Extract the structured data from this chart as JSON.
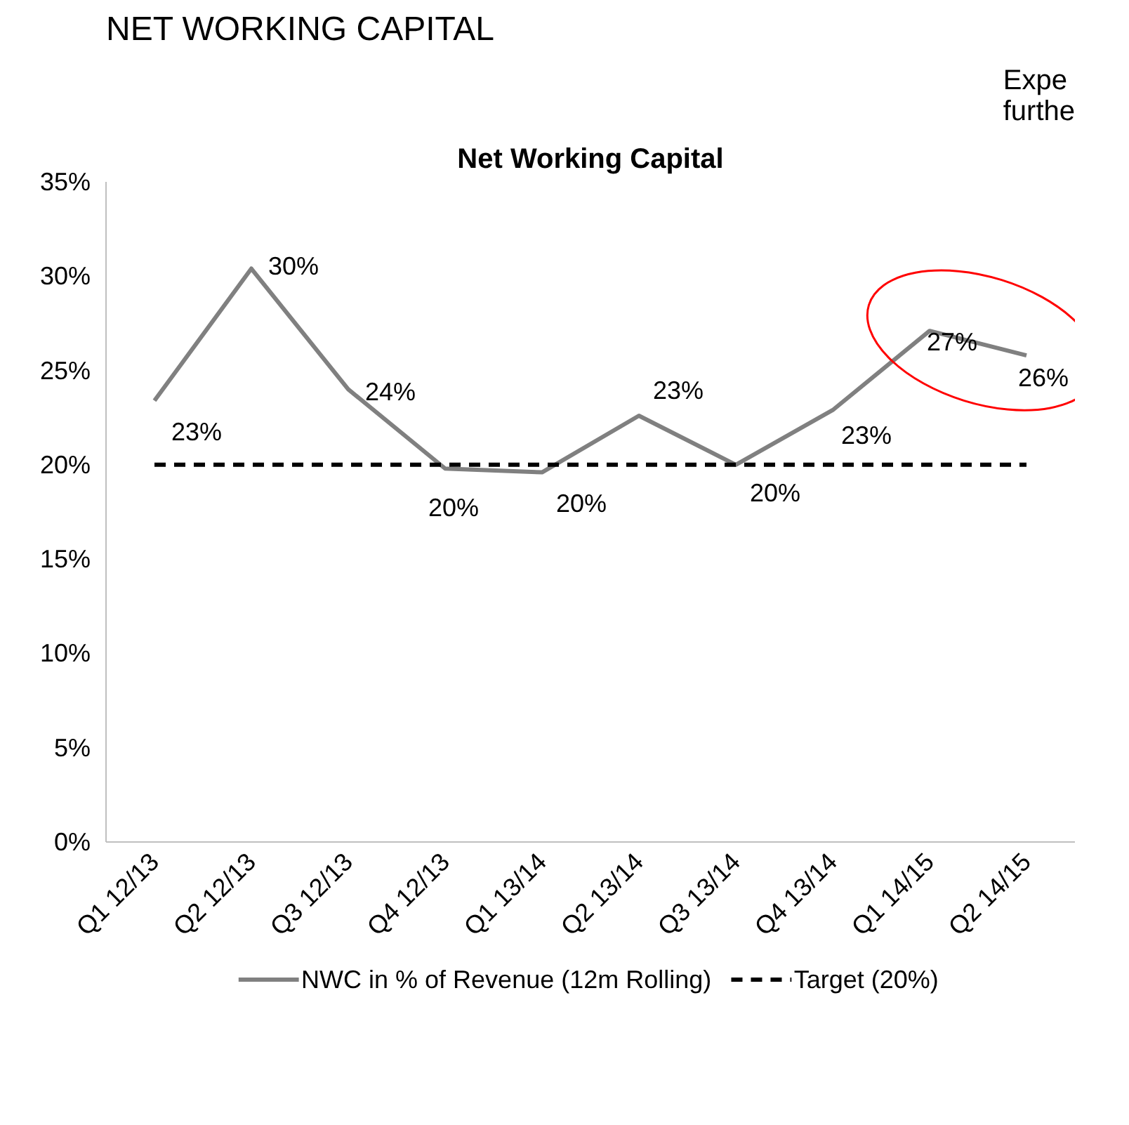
{
  "chart_data": {
    "type": "line",
    "title": "Net Working Capital",
    "annotations": [
      "NET WORKING CAPITAL",
      "Expe\nfurthe"
    ],
    "categories": [
      "Q1 12/13",
      "Q2 12/13",
      "Q3 12/13",
      "Q4 12/13",
      "Q1 13/14",
      "Q2 13/14",
      "Q3 13/14",
      "Q4 13/14",
      "Q1 14/15",
      "Q2 14/15"
    ],
    "series": [
      {
        "name": "NWC in % of Revenue (12m Rolling)",
        "color": "#808080",
        "values": [
          23.4,
          30.4,
          24.0,
          19.8,
          19.6,
          22.6,
          20.0,
          22.9,
          27.1,
          25.8
        ],
        "value_labels": [
          "23%",
          "30%",
          "24%",
          "20%",
          "20%",
          "23%",
          "20%",
          "23%",
          "27%",
          "26%"
        ],
        "line_style": "solid"
      },
      {
        "name": "Target (20%)",
        "color": "#000000",
        "values": [
          20,
          20,
          20,
          20,
          20,
          20,
          20,
          20,
          20,
          20
        ],
        "line_style": "dashed"
      }
    ],
    "ylim": [
      0,
      35
    ],
    "yticks": [
      {
        "value": 0,
        "label": "0%"
      },
      {
        "value": 5,
        "label": "5%"
      },
      {
        "value": 10,
        "label": "10%"
      },
      {
        "value": 15,
        "label": "15%"
      },
      {
        "value": 20,
        "label": "20%"
      },
      {
        "value": 25,
        "label": "25%"
      },
      {
        "value": 30,
        "label": "30%"
      },
      {
        "value": 35,
        "label": "35%"
      }
    ],
    "grid": false,
    "legend": "bottom",
    "marker": "none"
  }
}
